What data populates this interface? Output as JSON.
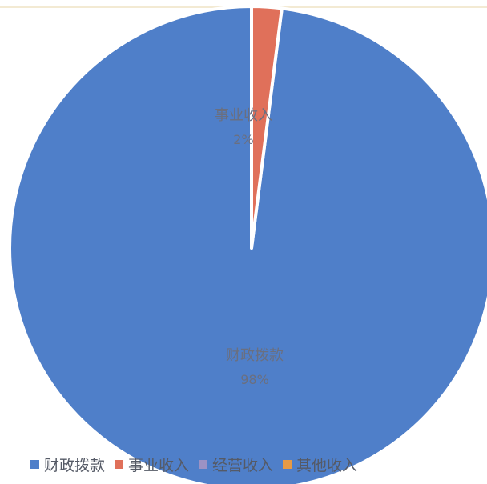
{
  "chart_data": {
    "type": "pie",
    "slices": [
      {
        "label": "财政拨款",
        "value": 98,
        "pct_label": "98%",
        "color": "#4f7fc9"
      },
      {
        "label": "事业收入",
        "value": 2,
        "pct_label": "2%",
        "color": "#e0705a"
      },
      {
        "label": "经营收入",
        "value": 0,
        "pct_label": "",
        "color": "#9c92c4"
      },
      {
        "label": "其他收入",
        "value": 0,
        "pct_label": "",
        "color": "#e69a45"
      }
    ],
    "legend": {
      "placement": "bottom",
      "entries": [
        "财政拨款",
        "事业收入",
        "经营收入",
        "其他收入"
      ]
    }
  }
}
